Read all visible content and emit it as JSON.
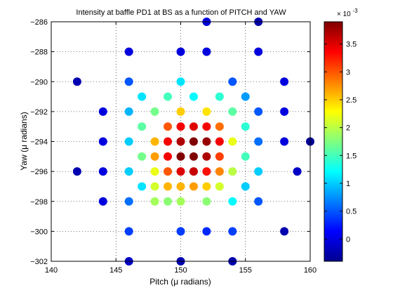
{
  "chart_data": {
    "type": "scatter",
    "title": "Intensity at baffle PD1 at BS as a function of PITCH and YAW",
    "xlabel": "Pitch (μ radians)",
    "ylabel": "Yaw (μ radians)",
    "xlim": [
      140,
      160
    ],
    "ylim": [
      -302,
      -286
    ],
    "xticks": [
      140,
      145,
      150,
      155,
      160
    ],
    "yticks": [
      -302,
      -300,
      -298,
      -296,
      -294,
      -292,
      -290,
      -288,
      -286
    ],
    "grid": true,
    "colorbar": {
      "colormap": "jet",
      "range": [
        -0.0004,
        0.0039
      ],
      "ticks": [
        0,
        0.5,
        1,
        1.5,
        2,
        2.5,
        3,
        3.5
      ],
      "tick_labels": [
        "0",
        "0.5",
        "1",
        "1.5",
        "2",
        "2.5",
        "3",
        "3.5"
      ],
      "multiplier_label": "× 10",
      "multiplier_exponent": "-3"
    },
    "points": [
      {
        "x": 152,
        "y": -286,
        "v": 0.0
      },
      {
        "x": 156,
        "y": -286,
        "v": -0.0002
      },
      {
        "x": 146,
        "y": -288,
        "v": 0.0
      },
      {
        "x": 150,
        "y": -288,
        "v": 0.0
      },
      {
        "x": 152,
        "y": -288,
        "v": 0.0
      },
      {
        "x": 156,
        "y": -288,
        "v": 0.0
      },
      {
        "x": 142,
        "y": -290,
        "v": -0.0002
      },
      {
        "x": 146,
        "y": -290,
        "v": 0.0005
      },
      {
        "x": 150,
        "y": -290,
        "v": 0.0011
      },
      {
        "x": 154,
        "y": -290,
        "v": 0.0005
      },
      {
        "x": 158,
        "y": -290,
        "v": 0.0
      },
      {
        "x": 147,
        "y": -291,
        "v": 0.0011
      },
      {
        "x": 149,
        "y": -291,
        "v": 0.0015
      },
      {
        "x": 151,
        "y": -291,
        "v": 0.0012
      },
      {
        "x": 153,
        "y": -291,
        "v": 0.0014
      },
      {
        "x": 155,
        "y": -291,
        "v": 0.0008
      },
      {
        "x": 144,
        "y": -292,
        "v": 0.0
      },
      {
        "x": 146,
        "y": -292,
        "v": 0.0009
      },
      {
        "x": 148,
        "y": -292,
        "v": 0.0017
      },
      {
        "x": 150,
        "y": -292,
        "v": 0.0025
      },
      {
        "x": 152,
        "y": -292,
        "v": 0.0024
      },
      {
        "x": 154,
        "y": -292,
        "v": 0.0016
      },
      {
        "x": 156,
        "y": -292,
        "v": 0.0005
      },
      {
        "x": 158,
        "y": -292,
        "v": 0.0
      },
      {
        "x": 147,
        "y": -293,
        "v": 0.0016
      },
      {
        "x": 149,
        "y": -293,
        "v": 0.003
      },
      {
        "x": 150,
        "y": -293,
        "v": 0.0034
      },
      {
        "x": 151,
        "y": -293,
        "v": 0.0035
      },
      {
        "x": 152,
        "y": -293,
        "v": 0.0034
      },
      {
        "x": 153,
        "y": -293,
        "v": 0.0029
      },
      {
        "x": 155,
        "y": -293,
        "v": 0.0014
      },
      {
        "x": 144,
        "y": -294,
        "v": 0.0
      },
      {
        "x": 146,
        "y": -294,
        "v": 0.001
      },
      {
        "x": 148,
        "y": -294,
        "v": 0.0026
      },
      {
        "x": 149,
        "y": -294,
        "v": 0.0034
      },
      {
        "x": 150,
        "y": -294,
        "v": 0.0037
      },
      {
        "x": 151,
        "y": -294,
        "v": 0.0039
      },
      {
        "x": 152,
        "y": -294,
        "v": 0.0038
      },
      {
        "x": 153,
        "y": -294,
        "v": 0.0034
      },
      {
        "x": 154,
        "y": -294,
        "v": 0.0022
      },
      {
        "x": 156,
        "y": -294,
        "v": 0.0006
      },
      {
        "x": 158,
        "y": -294,
        "v": 0.0
      },
      {
        "x": 160,
        "y": -294,
        "v": -0.0003
      },
      {
        "x": 147,
        "y": -295,
        "v": 0.0017
      },
      {
        "x": 148,
        "y": -295,
        "v": 0.0027
      },
      {
        "x": 149,
        "y": -295,
        "v": 0.0034
      },
      {
        "x": 150,
        "y": -295,
        "v": 0.0039
      },
      {
        "x": 151,
        "y": -295,
        "v": 0.0039
      },
      {
        "x": 152,
        "y": -295,
        "v": 0.0037
      },
      {
        "x": 153,
        "y": -295,
        "v": 0.0031
      },
      {
        "x": 155,
        "y": -295,
        "v": 0.0015
      },
      {
        "x": 142,
        "y": -296,
        "v": -0.0002
      },
      {
        "x": 144,
        "y": -296,
        "v": 0.0
      },
      {
        "x": 146,
        "y": -296,
        "v": 0.001
      },
      {
        "x": 148,
        "y": -296,
        "v": 0.0022
      },
      {
        "x": 149,
        "y": -296,
        "v": 0.003
      },
      {
        "x": 150,
        "y": -296,
        "v": 0.0035
      },
      {
        "x": 151,
        "y": -296,
        "v": 0.0036
      },
      {
        "x": 152,
        "y": -296,
        "v": 0.0033
      },
      {
        "x": 153,
        "y": -296,
        "v": 0.0028
      },
      {
        "x": 154,
        "y": -296,
        "v": 0.002
      },
      {
        "x": 156,
        "y": -296,
        "v": 0.001
      },
      {
        "x": 159,
        "y": -296,
        "v": -0.0001
      },
      {
        "x": 147,
        "y": -297,
        "v": 0.0011
      },
      {
        "x": 148,
        "y": -297,
        "v": 0.0021
      },
      {
        "x": 149,
        "y": -297,
        "v": 0.0026
      },
      {
        "x": 150,
        "y": -297,
        "v": 0.0026
      },
      {
        "x": 151,
        "y": -297,
        "v": 0.0027
      },
      {
        "x": 152,
        "y": -297,
        "v": 0.0025
      },
      {
        "x": 153,
        "y": -297,
        "v": 0.0021
      },
      {
        "x": 155,
        "y": -297,
        "v": 0.001
      },
      {
        "x": 144,
        "y": -298,
        "v": 0.0
      },
      {
        "x": 146,
        "y": -298,
        "v": 0.0006
      },
      {
        "x": 148,
        "y": -298,
        "v": 0.0019
      },
      {
        "x": 149,
        "y": -298,
        "v": 0.0018
      },
      {
        "x": 150,
        "y": -298,
        "v": 0.0019
      },
      {
        "x": 152,
        "y": -298,
        "v": 0.0018
      },
      {
        "x": 154,
        "y": -298,
        "v": 0.0012
      },
      {
        "x": 156,
        "y": -298,
        "v": 0.0005
      },
      {
        "x": 146,
        "y": -300,
        "v": 0.0004
      },
      {
        "x": 150,
        "y": -300,
        "v": 0.0004
      },
      {
        "x": 152,
        "y": -300,
        "v": 0.0003
      },
      {
        "x": 154,
        "y": -300,
        "v": 0.0004
      },
      {
        "x": 158,
        "y": -300,
        "v": -0.0002
      },
      {
        "x": 146,
        "y": -302,
        "v": -0.0001
      },
      {
        "x": 150,
        "y": -302,
        "v": -0.0002
      },
      {
        "x": 154,
        "y": -302,
        "v": -0.0002
      }
    ]
  }
}
